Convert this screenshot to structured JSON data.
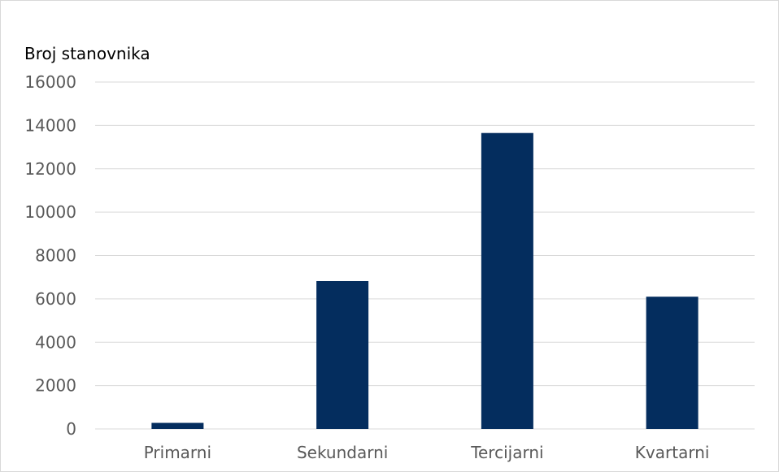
{
  "chart_data": {
    "type": "bar",
    "title": "",
    "xlabel": "",
    "ylabel": "Broj stanovnika",
    "categories": [
      "Primarni",
      "Sekundarni",
      "Tercijarni",
      "Kvartarni"
    ],
    "values": [
      280,
      6820,
      13650,
      6100
    ],
    "ylim": [
      0,
      16000
    ],
    "yticks": [
      0,
      2000,
      4000,
      6000,
      8000,
      10000,
      12000,
      14000,
      16000
    ],
    "grid": true,
    "legend": "none",
    "bar_color": "#042d5e",
    "grid_color": "#d9d9d9"
  }
}
